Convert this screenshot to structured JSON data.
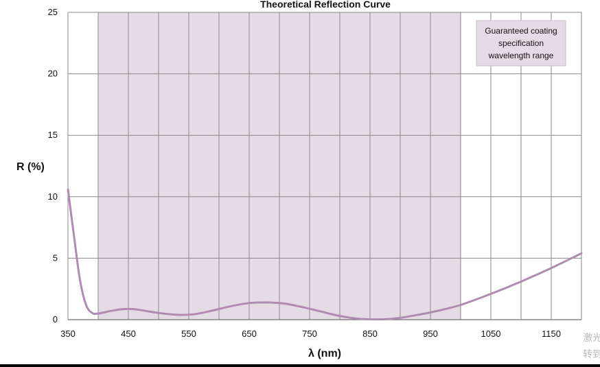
{
  "chart_data": {
    "type": "line",
    "title": "Theoretical Reflection Curve",
    "xlabel": "λ (nm)",
    "ylabel": "R (%)",
    "xlim": [
      350,
      1200
    ],
    "ylim": [
      0,
      25
    ],
    "x_ticks": [
      350,
      450,
      550,
      650,
      750,
      850,
      950,
      1050,
      1150
    ],
    "y_ticks": [
      0,
      5,
      10,
      15,
      20,
      25
    ],
    "grid": true,
    "shaded_region": {
      "label": "Guaranteed coating specification wavelength range",
      "label_lines": [
        "Guaranteed coating",
        "specification",
        "wavelength range"
      ],
      "x_range": [
        400,
        1000
      ],
      "color": "#e5dbe5"
    },
    "series": [
      {
        "color": "#b08bb0",
        "x": [
          350,
          360,
          370,
          380,
          390,
          400,
          420,
          440,
          460,
          480,
          500,
          530,
          560,
          590,
          620,
          650,
          680,
          710,
          740,
          770,
          800,
          830,
          860,
          880,
          900,
          930,
          960,
          1000,
          1050,
          1100,
          1150,
          1200
        ],
        "y": [
          10.6,
          6.8,
          3.2,
          1.2,
          0.55,
          0.5,
          0.7,
          0.85,
          0.85,
          0.7,
          0.55,
          0.4,
          0.45,
          0.75,
          1.1,
          1.35,
          1.4,
          1.3,
          1.0,
          0.65,
          0.3,
          0.08,
          0.02,
          0.05,
          0.15,
          0.4,
          0.7,
          1.2,
          2.1,
          3.1,
          4.2,
          5.4
        ]
      }
    ]
  },
  "watermark": [
    "激光",
    "转到"
  ]
}
